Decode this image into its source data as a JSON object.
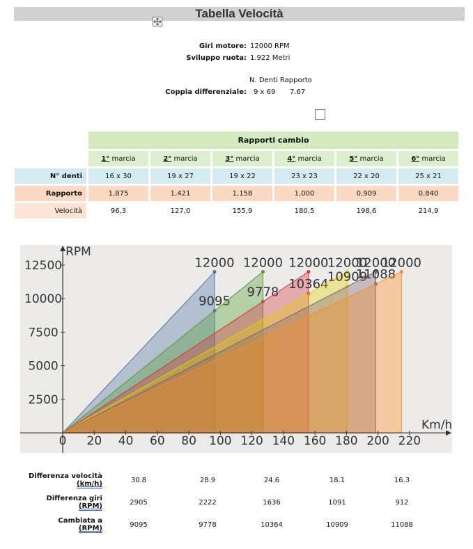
{
  "header": {
    "title": "Tabella Velocità"
  },
  "info": {
    "rows": [
      {
        "label": "Giri motore:",
        "value": "12000 RPM"
      },
      {
        "label": "Sviluppo ruota:",
        "value": "1.922 Metri"
      }
    ],
    "diff_header": "N. Denti Rapporto",
    "diff": {
      "label": "Coppia differenziale:",
      "teeth": "9 x 69",
      "ratio": "7.67"
    }
  },
  "table": {
    "title": "Rapporti cambio",
    "columns": [
      {
        "num": "1°",
        "text": "marcia"
      },
      {
        "num": "2°",
        "text": "marcia"
      },
      {
        "num": "3°",
        "text": "marcia"
      },
      {
        "num": "4°",
        "text": "marcia"
      },
      {
        "num": "5°",
        "text": "marcia"
      },
      {
        "num": "6°",
        "text": "marcia"
      }
    ],
    "rows": [
      {
        "label": "N° denti",
        "cells": [
          "16 x 30",
          "19 x 27",
          "19 x 22",
          "23 x 23",
          "22 x 20",
          "25 x 21"
        ]
      },
      {
        "label": "Rapporto",
        "cells": [
          "1,875",
          "1,421",
          "1,158",
          "1,000",
          "0,909",
          "0,840"
        ]
      },
      {
        "label": "Velocità",
        "cells": [
          "96,3",
          "127,0",
          "155,9",
          "180,5",
          "198,6",
          "214,9"
        ]
      }
    ]
  },
  "chart_data": {
    "type": "area",
    "xlabel": "Km/h",
    "ylabel": "RPM",
    "xlim": [
      -27,
      247
    ],
    "ylim": [
      -1500,
      14000
    ],
    "xticks": [
      0,
      20,
      40,
      60,
      80,
      100,
      120,
      140,
      160,
      180,
      200,
      220
    ],
    "yticks": [
      2500,
      5000,
      7500,
      10000,
      12500
    ],
    "series": [
      {
        "color": "#4a6fa8",
        "x": [
          0,
          96.3
        ],
        "values": [
          0,
          12000
        ],
        "shift_x": 96.3,
        "shift_value": 9095
      },
      {
        "color": "#4f9a2a",
        "x": [
          0,
          127.0
        ],
        "values": [
          0,
          12000
        ],
        "shift_x": 127.0,
        "shift_value": 9778
      },
      {
        "color": "#d8323c",
        "x": [
          0,
          155.9
        ],
        "values": [
          0,
          12000
        ],
        "shift_x": 155.9,
        "shift_value": 10364
      },
      {
        "color": "#e6d000",
        "x": [
          0,
          180.5
        ],
        "values": [
          0,
          12000
        ],
        "shift_x": 180.5,
        "shift_value": 10909
      },
      {
        "color": "#7a5f78",
        "x": [
          0,
          198.6
        ],
        "values": [
          0,
          12000
        ],
        "shift_x": 198.6,
        "shift_value": 11088
      },
      {
        "color": "#ff8a1e",
        "x": [
          0,
          214.9
        ],
        "values": [
          0,
          12000
        ]
      }
    ]
  },
  "summary": {
    "rows": [
      {
        "label": "Differenza velocità",
        "unit": "(km/h)",
        "cells": [
          "30.8",
          "28.9",
          "24.6",
          "18.1",
          "16.3"
        ]
      },
      {
        "label": "Differenza giri",
        "unit": "(RPM)",
        "cells": [
          "2905",
          "2222",
          "1636",
          "1091",
          "912"
        ]
      },
      {
        "label": "Cambiata a",
        "unit": "(RPM)",
        "cells": [
          "9095",
          "9778",
          "10364",
          "10909",
          "11088"
        ]
      }
    ]
  }
}
